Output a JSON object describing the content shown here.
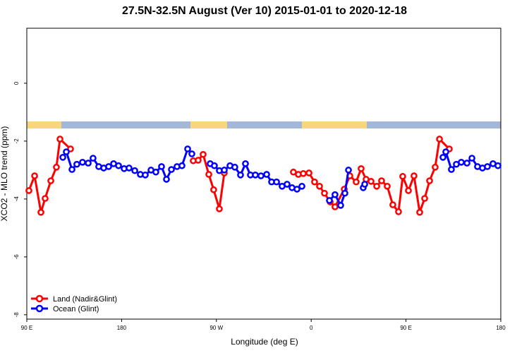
{
  "chart_data": {
    "type": "line",
    "title": "27.5N-32.5N August (Ver 10)   2015-01-01 to 2020-12-18",
    "x_label": "Longitude (deg E)",
    "y_label": "XCO2 - MLO trend (ppm)",
    "xlim": [
      90,
      540
    ],
    "xticks": [
      {
        "value": 90,
        "label": "90 E"
      },
      {
        "value": 180,
        "label": "180"
      },
      {
        "value": 270,
        "label": "90 W"
      },
      {
        "value": 360,
        "label": "0"
      },
      {
        "value": 450,
        "label": "90 E"
      },
      {
        "value": 540,
        "label": "180"
      }
    ],
    "ylim": [
      -8.15,
      1.9
    ],
    "yticks": [
      0,
      -2,
      -4,
      -6,
      -8
    ],
    "legend": "bottom-left",
    "series": [
      {
        "name": "Land (Nadir&Glint)",
        "color": "#ff0000",
        "x": [
          92.0,
          97.4,
          103.4,
          107.4,
          112.8,
          118.1,
          121.5,
          131.5,
          null,
          248.0,
          252.7,
          257.4,
          262.8,
          267.4,
          272.8,
          277.5,
          null,
          343.1,
          347.8,
          352.5,
          357.9,
          363.2,
          367.9,
          372.6,
          378.0,
          382.6,
          391.4,
          396.7,
          402.7,
          407.4,
          412.1,
          416.8,
          422.2,
          426.8,
          432.2,
          437.5,
          442.9,
          446.9,
          452.3,
          457.6,
          463.0,
          467.7,
          472.4,
          477.7,
          481.8,
          491.1
        ],
        "values": [
          -3.71,
          -3.2,
          -4.46,
          -3.98,
          -3.37,
          -2.9,
          -1.93,
          -2.27,
          null,
          -2.68,
          -2.66,
          -2.46,
          -3.15,
          -3.68,
          -4.34,
          -3.1,
          null,
          -3.07,
          -3.15,
          -3.12,
          -3.1,
          -3.41,
          -3.56,
          -3.8,
          -4.1,
          -4.27,
          -3.66,
          -3.2,
          -3.41,
          -2.95,
          -3.32,
          -3.39,
          -3.56,
          -3.37,
          -3.56,
          -4.2,
          -4.44,
          -3.22,
          -3.71,
          -3.2,
          -4.46,
          -3.98,
          -3.37,
          -2.9,
          -1.93,
          -2.27
        ]
      },
      {
        "name": "Ocean (Glint)",
        "color": "#0000ff",
        "x": [
          124.2,
          127.5,
          132.9,
          137.5,
          142.9,
          148.3,
          152.9,
          158.3,
          163.0,
          167.7,
          172.4,
          177.1,
          182.4,
          187.1,
          192.5,
          197.8,
          202.5,
          207.9,
          212.5,
          217.9,
          222.6,
          227.3,
          232.6,
          237.3,
          242.7,
          246.7,
          null,
          264.1,
          268.1,
          272.8,
          277.5,
          282.9,
          287.5,
          292.9,
          297.6,
          302.3,
          307.0,
          312.3,
          317.7,
          322.4,
          327.1,
          332.4,
          337.1,
          341.8,
          346.5,
          351.2,
          null,
          377.3,
          382.6,
          388.0,
          392.0,
          395.4,
          null,
          409.4,
          410.8,
          null,
          485.1,
          487.8,
          493.1,
          497.8,
          502.5,
          507.9,
          512.6,
          517.9,
          522.6,
          527.3,
          532.6,
          537.3
        ],
        "values": [
          -2.56,
          -2.37,
          -2.98,
          -2.8,
          -2.73,
          -2.76,
          -2.59,
          -2.88,
          -2.93,
          -2.88,
          -2.78,
          -2.85,
          -2.95,
          -2.93,
          -3.02,
          -3.15,
          -3.17,
          -3.0,
          -3.07,
          -2.88,
          -3.32,
          -2.98,
          -2.88,
          -2.85,
          -2.27,
          -2.44,
          null,
          -2.78,
          -2.85,
          -3.02,
          -3.0,
          -2.85,
          -2.9,
          -3.17,
          -2.78,
          -3.17,
          -3.17,
          -3.2,
          -3.15,
          -3.41,
          -3.41,
          -3.56,
          -3.49,
          -3.61,
          -3.66,
          -3.56,
          null,
          -4.05,
          -3.85,
          -4.22,
          -3.8,
          -3.0,
          null,
          -3.61,
          -3.49,
          null,
          -2.56,
          -2.37,
          -2.98,
          -2.8,
          -2.73,
          -2.76,
          -2.59,
          -2.88,
          -2.93,
          -2.88,
          -2.78,
          -2.85
        ]
      }
    ]
  }
}
